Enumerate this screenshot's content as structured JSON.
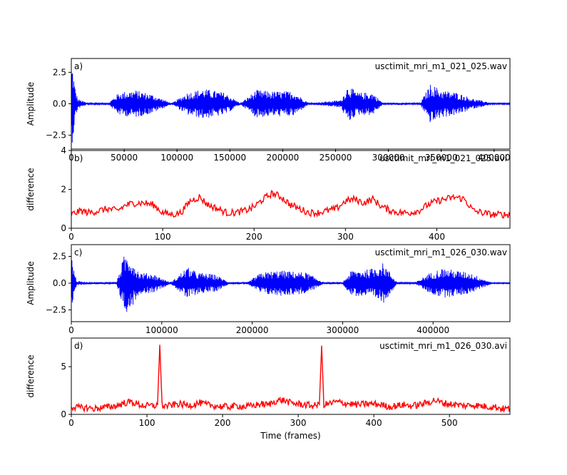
{
  "chart_data": [
    {
      "type": "line",
      "panel_label": "a)",
      "title": "usctimit_mri_m1_021_025.wav",
      "ylabel": "Amplitude",
      "xlabel": "",
      "xlim": [
        0,
        415000
      ],
      "ylim": [
        -3.6,
        3.6
      ],
      "xticks": [
        0,
        50000,
        100000,
        150000,
        200000,
        250000,
        300000,
        350000,
        400000
      ],
      "yticks": [
        -2.5,
        0.0,
        2.5
      ],
      "ytick_labels": [
        "−2.5",
        "0.0",
        "2.5"
      ],
      "color": "#0000ff",
      "series": [
        {
          "x": [
            0,
            1500,
            3000,
            6000,
            15000,
            35000,
            45000,
            60000,
            75000,
            95000,
            110000,
            125000,
            145000,
            160000,
            175000,
            190000,
            210000,
            225000,
            255000,
            262000,
            270000,
            285000,
            295000,
            310000,
            330000,
            340000,
            350000,
            365000,
            380000,
            400000,
            415000
          ],
          "envelope": [
            3.2,
            3.0,
            1.6,
            0.4,
            0.08,
            0.05,
            0.9,
            1.1,
            0.8,
            0.05,
            0.9,
            1.2,
            0.9,
            0.05,
            1.1,
            1.0,
            1.0,
            0.05,
            0.3,
            1.5,
            0.9,
            0.9,
            0.05,
            0.1,
            0.05,
            1.6,
            1.1,
            0.9,
            0.4,
            0.05,
            0.05
          ]
        }
      ]
    },
    {
      "type": "line",
      "panel_label": "b)",
      "title": "usctimit_mri_m1_021_025.avi",
      "ylabel": "difference",
      "xlabel": "",
      "xlim": [
        0,
        480
      ],
      "ylim": [
        0,
        4
      ],
      "xticks": [
        0,
        100,
        200,
        300,
        400
      ],
      "yticks": [
        0,
        2,
        4
      ],
      "ytick_labels": [
        "0",
        "2",
        "4"
      ],
      "color": "#ff0000",
      "series": [
        {
          "x": [
            0,
            10,
            20,
            30,
            40,
            50,
            60,
            70,
            80,
            90,
            100,
            110,
            120,
            130,
            140,
            150,
            160,
            170,
            180,
            190,
            200,
            210,
            220,
            230,
            240,
            250,
            260,
            270,
            280,
            290,
            300,
            310,
            320,
            330,
            340,
            350,
            360,
            370,
            380,
            390,
            400,
            410,
            420,
            430,
            440,
            450,
            460,
            470,
            480
          ],
          "y": [
            0.7,
            0.9,
            0.8,
            0.9,
            1.0,
            0.9,
            1.2,
            1.3,
            1.3,
            1.2,
            0.8,
            0.7,
            0.8,
            1.4,
            1.6,
            1.2,
            1.0,
            0.8,
            0.8,
            0.9,
            1.1,
            1.5,
            1.8,
            1.6,
            1.2,
            1.0,
            0.8,
            0.8,
            0.9,
            1.0,
            1.4,
            1.5,
            1.3,
            1.5,
            1.1,
            0.9,
            0.8,
            0.8,
            0.9,
            1.2,
            1.4,
            1.5,
            1.6,
            1.5,
            0.9,
            0.8,
            0.7,
            0.7,
            0.7
          ]
        }
      ]
    },
    {
      "type": "line",
      "panel_label": "c)",
      "title": "usctimit_mri_m1_026_030.wav",
      "ylabel": "Amplitude",
      "xlabel": "",
      "xlim": [
        0,
        485000
      ],
      "ylim": [
        -3.6,
        3.6
      ],
      "xticks": [
        0,
        100000,
        200000,
        300000,
        400000
      ],
      "yticks": [
        -2.5,
        0.0,
        2.5
      ],
      "ytick_labels": [
        "−2.5",
        "0.0",
        "2.5"
      ],
      "color": "#0000ff",
      "series": [
        {
          "x": [
            0,
            1500,
            3000,
            6000,
            20000,
            50000,
            58000,
            63000,
            75000,
            90000,
            110000,
            128000,
            140000,
            160000,
            175000,
            195000,
            210000,
            230000,
            260000,
            280000,
            300000,
            310000,
            330000,
            345000,
            360000,
            380000,
            395000,
            410000,
            440000,
            465000,
            485000
          ],
          "envelope": [
            2.8,
            2.5,
            1.2,
            0.2,
            0.1,
            0.1,
            2.5,
            2.8,
            1.0,
            0.9,
            0.05,
            1.5,
            1.0,
            0.8,
            0.05,
            0.1,
            1.0,
            1.2,
            1.0,
            0.05,
            0.1,
            1.2,
            1.3,
            1.9,
            0.1,
            0.05,
            0.9,
            1.4,
            1.0,
            0.05,
            0.05
          ]
        }
      ]
    },
    {
      "type": "line",
      "panel_label": "d)",
      "title": "usctimit_mri_m1_026_030.avi",
      "ylabel": "difference",
      "xlabel": "Time (frames)",
      "xlim": [
        0,
        580
      ],
      "ylim": [
        0,
        8
      ],
      "xticks": [
        0,
        100,
        200,
        300,
        400,
        500
      ],
      "yticks": [
        0,
        5
      ],
      "ytick_labels": [
        "0",
        "5"
      ],
      "color": "#ff0000",
      "series": [
        {
          "x": [
            0,
            10,
            20,
            30,
            40,
            50,
            60,
            70,
            80,
            90,
            100,
            110,
            114,
            117,
            120,
            130,
            140,
            150,
            160,
            170,
            180,
            190,
            200,
            210,
            220,
            230,
            240,
            250,
            260,
            270,
            280,
            290,
            300,
            310,
            320,
            328,
            331,
            334,
            340,
            350,
            360,
            370,
            380,
            390,
            400,
            410,
            420,
            430,
            440,
            450,
            460,
            470,
            480,
            490,
            500,
            510,
            520,
            530,
            540,
            550,
            560,
            570,
            580
          ],
          "y": [
            0.8,
            0.7,
            0.7,
            0.6,
            0.7,
            0.8,
            0.9,
            1.2,
            1.3,
            1.0,
            0.9,
            0.9,
            1.0,
            7.3,
            0.9,
            0.9,
            1.1,
            1.0,
            1.0,
            1.2,
            1.0,
            0.9,
            0.8,
            0.8,
            0.9,
            0.8,
            0.9,
            1.1,
            1.0,
            1.4,
            1.5,
            1.2,
            1.1,
            1.0,
            0.9,
            1.0,
            7.2,
            1.0,
            1.1,
            1.3,
            1.2,
            1.1,
            1.0,
            1.1,
            1.1,
            1.0,
            0.8,
            0.9,
            1.0,
            0.9,
            1.0,
            1.2,
            1.5,
            1.2,
            1.1,
            1.0,
            0.9,
            1.0,
            0.9,
            0.8,
            0.8,
            0.6,
            0.6
          ]
        }
      ]
    }
  ]
}
